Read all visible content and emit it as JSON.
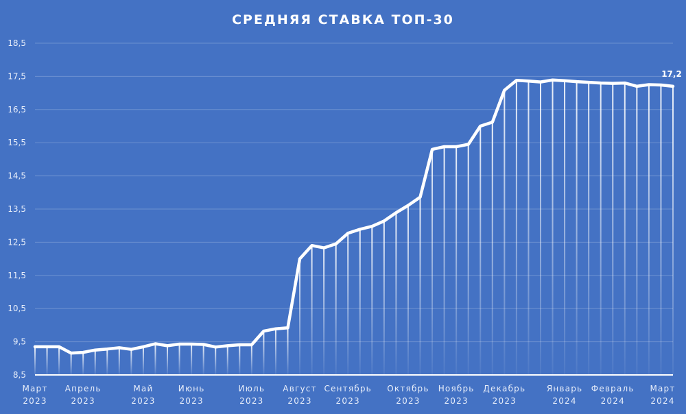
{
  "chart_data": {
    "type": "line",
    "title": "СРЕДНЯЯ СТАВКА ТОП-30",
    "xlabel": "",
    "ylabel": "",
    "ylim": [
      8.5,
      18.5
    ],
    "yticks": [
      "8,5",
      "9,5",
      "10,5",
      "11,5",
      "12,5",
      "13,5",
      "14,5",
      "15,5",
      "16,5",
      "17,5",
      "18,5"
    ],
    "ytick_values": [
      8.5,
      9.5,
      10.5,
      11.5,
      12.5,
      13.5,
      14.5,
      15.5,
      16.5,
      17.5,
      18.5
    ],
    "grid": true,
    "legend": "none",
    "x_tick_labels": [
      {
        "month": "Март",
        "year": "2023",
        "index": 0
      },
      {
        "month": "Апрель",
        "year": "2023",
        "index": 4
      },
      {
        "month": "Май",
        "year": "2023",
        "index": 9
      },
      {
        "month": "Июнь",
        "year": "2023",
        "index": 13
      },
      {
        "month": "Июль",
        "year": "2023",
        "index": 18
      },
      {
        "month": "Август",
        "year": "2023",
        "index": 22
      },
      {
        "month": "Сентябрь",
        "year": "2023",
        "index": 26
      },
      {
        "month": "Октябрь",
        "year": "2023",
        "index": 31
      },
      {
        "month": "Ноябрь",
        "year": "2023",
        "index": 35
      },
      {
        "month": "Декабрь",
        "year": "2023",
        "index": 39
      },
      {
        "month": "Январь",
        "year": "2024",
        "index": 44
      },
      {
        "month": "Февраль",
        "year": "2024",
        "index": 48
      },
      {
        "month": "Март",
        "year": "2024",
        "index": 52
      }
    ],
    "series": [
      {
        "name": "Средняя ставка ТОП-30",
        "values": [
          9.35,
          9.35,
          9.35,
          9.16,
          9.18,
          9.25,
          9.28,
          9.32,
          9.27,
          9.35,
          9.44,
          9.38,
          9.43,
          9.43,
          9.42,
          9.34,
          9.38,
          9.41,
          9.41,
          9.82,
          9.89,
          9.92,
          12.0,
          12.4,
          12.33,
          12.45,
          12.77,
          12.89,
          12.98,
          13.14,
          13.39,
          13.61,
          13.86,
          15.3,
          15.38,
          15.38,
          15.45,
          16.0,
          16.12,
          17.08,
          17.38,
          17.36,
          17.33,
          17.39,
          17.37,
          17.34,
          17.32,
          17.3,
          17.29,
          17.3,
          17.2,
          17.25,
          17.24,
          17.2
        ]
      }
    ],
    "last_value_label": "17,2"
  }
}
